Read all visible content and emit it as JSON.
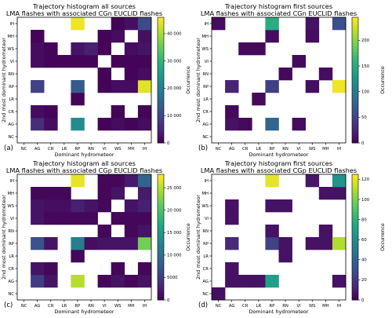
{
  "figure": {
    "xlabel": "Dominant hydrometeor",
    "ylabel": "2nd most dominant hydrometeor",
    "colorbar_label": "Occurrence"
  },
  "chart_data": [
    {
      "type": "heatmap",
      "panel": "(a)",
      "title": "Trajectory histogram all sources",
      "subtitle": "LMA flashes with associated CGn EUCLID flashes",
      "x": [
        "NC",
        "AG",
        "CR",
        "LR",
        "RP",
        "RN",
        "VI",
        "WS",
        "MH",
        "IH"
      ],
      "y": [
        "NC",
        "AG",
        "CR",
        "LR",
        "RP",
        "RN",
        "VI",
        "WS",
        "MH",
        "IH"
      ],
      "colorbar_ticks": [
        0,
        10000,
        20000,
        30000,
        40000
      ],
      "vmax": 46000,
      "values": [
        [
          null,
          null,
          null,
          null,
          null,
          null,
          null,
          null,
          null,
          null
        ],
        [
          null,
          6000,
          1500,
          null,
          22000,
          null,
          500,
          1500,
          500,
          1500
        ],
        [
          null,
          1500,
          500,
          null,
          null,
          null,
          null,
          500,
          null,
          500
        ],
        [
          null,
          null,
          null,
          null,
          500,
          null,
          null,
          null,
          null,
          null
        ],
        [
          null,
          9000,
          null,
          null,
          13000,
          null,
          500,
          1500,
          1500,
          44000
        ],
        [
          null,
          null,
          null,
          null,
          null,
          null,
          500,
          null,
          500,
          1500
        ],
        [
          null,
          1500,
          500,
          500,
          500,
          500,
          null,
          500,
          500,
          500
        ],
        [
          null,
          1500,
          500,
          null,
          2500,
          4000,
          500,
          null,
          1500,
          2500
        ],
        [
          null,
          500,
          null,
          null,
          null,
          null,
          500,
          1500,
          null,
          2000
        ],
        [
          null,
          null,
          null,
          null,
          45000,
          null,
          null,
          500,
          2000,
          10000
        ]
      ]
    },
    {
      "type": "heatmap",
      "panel": "(b)",
      "title": "Trajectory histogram first sources",
      "subtitle": "LMA flashes with associated CGn EUCLID flashes",
      "x": [
        "NC",
        "AG",
        "CR",
        "LR",
        "RP",
        "RN",
        "VI",
        "WS",
        "MH",
        "IH"
      ],
      "y": [
        "NC",
        "AG",
        "CR",
        "LR",
        "RP",
        "RN",
        "VI",
        "WS",
        "MH",
        "IH"
      ],
      "colorbar_ticks": [
        0,
        50,
        100,
        150,
        200
      ],
      "vmax": 245,
      "values": [
        [
          null,
          null,
          null,
          null,
          null,
          null,
          null,
          null,
          null,
          null
        ],
        [
          null,
          12,
          6,
          null,
          80,
          null,
          8,
          null,
          null,
          null
        ],
        [
          null,
          6,
          null,
          null,
          null,
          null,
          null,
          null,
          null,
          null
        ],
        [
          null,
          null,
          null,
          6,
          null,
          null,
          null,
          null,
          null,
          null
        ],
        [
          null,
          25,
          null,
          null,
          45,
          null,
          null,
          10,
          null,
          240
        ],
        [
          null,
          null,
          null,
          null,
          null,
          6,
          null,
          null,
          8,
          null
        ],
        [
          null,
          null,
          null,
          null,
          null,
          null,
          6,
          null,
          null,
          null
        ],
        [
          null,
          null,
          6,
          6,
          null,
          null,
          null,
          null,
          null,
          null
        ],
        [
          null,
          null,
          null,
          null,
          8,
          null,
          null,
          8,
          null,
          null
        ],
        [
          8,
          null,
          null,
          null,
          150,
          null,
          null,
          12,
          null,
          60
        ]
      ]
    },
    {
      "type": "heatmap",
      "panel": "(c)",
      "title": "Trajectory histogram all sources",
      "subtitle": "LMA flashes with associated CGp EUCLID flashes",
      "x": [
        "NC",
        "AG",
        "CR",
        "LR",
        "RP",
        "RN",
        "VI",
        "WS",
        "MH",
        "IH"
      ],
      "y": [
        "NC",
        "AG",
        "CR",
        "LR",
        "RP",
        "RN",
        "VI",
        "WS",
        "MH",
        "IH"
      ],
      "colorbar_ticks": [
        0,
        5000,
        10000,
        15000,
        20000,
        25000
      ],
      "vmax": 28000,
      "values": [
        [
          null,
          null,
          null,
          null,
          null,
          null,
          null,
          null,
          null,
          null
        ],
        [
          null,
          5000,
          1500,
          null,
          25000,
          null,
          500,
          1500,
          500,
          1500
        ],
        [
          null,
          1500,
          500,
          null,
          null,
          null,
          null,
          500,
          null,
          500
        ],
        [
          null,
          null,
          null,
          null,
          500,
          null,
          null,
          null,
          null,
          null
        ],
        [
          null,
          7000,
          1500,
          null,
          12000,
          1000,
          1500,
          1500,
          1500,
          22000
        ],
        [
          null,
          null,
          null,
          null,
          null,
          null,
          500,
          null,
          500,
          1500
        ],
        [
          null,
          1500,
          500,
          500,
          500,
          500,
          null,
          500,
          500,
          500
        ],
        [
          null,
          1500,
          1000,
          1000,
          2500,
          1500,
          500,
          null,
          1500,
          2500
        ],
        [
          null,
          500,
          500,
          500,
          null,
          null,
          500,
          1500,
          null,
          2000
        ],
        [
          null,
          null,
          null,
          null,
          27000,
          null,
          500,
          500,
          2000,
          9000
        ]
      ]
    },
    {
      "type": "heatmap",
      "panel": "(d)",
      "title": "Trajectory histogram first sources",
      "subtitle": "LMA flashes with associated CGp EUCLID flashes",
      "x": [
        "NC",
        "AG",
        "CR",
        "LR",
        "RP",
        "RN",
        "VI",
        "WS",
        "MH",
        "IH"
      ],
      "y": [
        "NC",
        "AG",
        "CR",
        "LR",
        "RP",
        "RN",
        "VI",
        "WS",
        "MH",
        "IH"
      ],
      "colorbar_ticks": [
        0,
        20,
        40,
        60,
        80,
        100,
        120
      ],
      "vmax": 125,
      "values": [
        [
          5,
          null,
          null,
          null,
          null,
          null,
          null,
          null,
          null,
          null
        ],
        [
          null,
          6,
          6,
          6,
          70,
          null,
          null,
          null,
          null,
          6
        ],
        [
          null,
          6,
          null,
          null,
          null,
          null,
          null,
          null,
          null,
          null
        ],
        [
          null,
          null,
          null,
          null,
          null,
          6,
          null,
          null,
          null,
          null
        ],
        [
          null,
          15,
          null,
          null,
          25,
          6,
          null,
          6,
          6,
          110
        ],
        [
          null,
          null,
          null,
          null,
          6,
          null,
          null,
          null,
          6,
          null
        ],
        [
          null,
          6,
          null,
          null,
          null,
          null,
          null,
          null,
          null,
          null
        ],
        [
          null,
          6,
          null,
          null,
          6,
          6,
          null,
          null,
          null,
          null
        ],
        [
          null,
          null,
          null,
          null,
          null,
          null,
          null,
          null,
          6,
          6
        ],
        [
          null,
          null,
          null,
          null,
          120,
          null,
          null,
          8,
          null,
          65
        ]
      ]
    }
  ]
}
